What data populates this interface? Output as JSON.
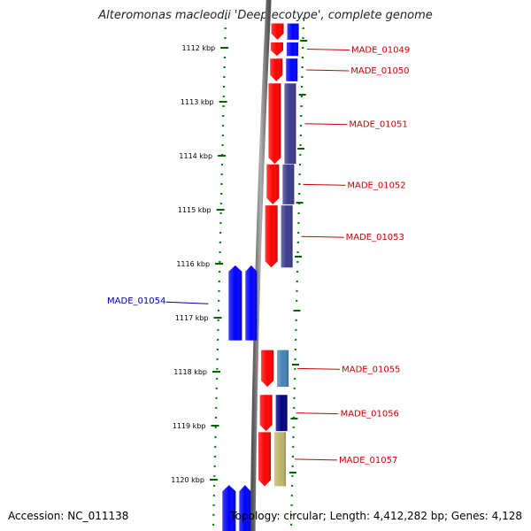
{
  "title": "Alteromonas macleodii 'Deep ecotype', complete genome",
  "footer": {
    "accession": "Accession: NC_011138",
    "topology": "Topology: circular; Length: 4,412,282 bp; Genes: 4,128"
  },
  "ticks": [
    {
      "kbp": 1112,
      "label": "1112 kbp"
    },
    {
      "kbp": 1113,
      "label": "1113 kbp"
    },
    {
      "kbp": 1114,
      "label": "1114 kbp"
    },
    {
      "kbp": 1115,
      "label": "1115 kbp"
    },
    {
      "kbp": 1116,
      "label": "1116 kbp"
    },
    {
      "kbp": 1117,
      "label": "1117 kbp"
    },
    {
      "kbp": 1118,
      "label": "1118 kbp"
    },
    {
      "kbp": 1119,
      "label": "1119 kbp"
    },
    {
      "kbp": 1120,
      "label": "1120 kbp"
    }
  ],
  "genes": [
    {
      "label": "",
      "strand": "forward",
      "start_kbp": 1111.55,
      "end_kbp": 1111.85,
      "color": "#ff0000",
      "cog_color": "#0000ff"
    },
    {
      "label": "MADE_01049",
      "strand": "forward",
      "start_kbp": 1111.9,
      "end_kbp": 1112.15,
      "color": "#ff0000",
      "cog_color": "#0000ff"
    },
    {
      "label": "MADE_01050",
      "strand": "forward",
      "start_kbp": 1112.2,
      "end_kbp": 1112.62,
      "color": "#ff0000",
      "cog_color": "#0000ff"
    },
    {
      "label": "MADE_01051",
      "strand": "forward",
      "start_kbp": 1112.66,
      "end_kbp": 1114.15,
      "color": "#ff0000",
      "cog_color": "#3b3b8c"
    },
    {
      "label": "MADE_01052",
      "strand": "forward",
      "start_kbp": 1114.16,
      "end_kbp": 1114.9,
      "color": "#ff0000",
      "cog_color": "#3b3b8c"
    },
    {
      "label": "MADE_01053",
      "strand": "forward",
      "start_kbp": 1114.92,
      "end_kbp": 1116.07,
      "color": "#ff0000",
      "cog_color": "#3b3b8c"
    },
    {
      "label": "MADE_01054",
      "strand": "reverse",
      "start_kbp": 1116.03,
      "end_kbp": 1117.42,
      "color": "#0000ff",
      "cog_color": "#0000ff"
    },
    {
      "label": "MADE_01055",
      "strand": "forward",
      "start_kbp": 1117.6,
      "end_kbp": 1118.28,
      "color": "#ff0000",
      "cog_color": "#4682b4"
    },
    {
      "label": "MADE_01056",
      "strand": "forward",
      "start_kbp": 1118.43,
      "end_kbp": 1119.1,
      "color": "#ff0000",
      "cog_color": "#000080"
    },
    {
      "label": "MADE_01057",
      "strand": "forward",
      "start_kbp": 1119.12,
      "end_kbp": 1120.12,
      "color": "#ff0000",
      "cog_color": "#bdb76b"
    },
    {
      "label": "",
      "strand": "reverse",
      "start_kbp": 1120.1,
      "end_kbp": 1121.0,
      "color": "#0000ff",
      "cog_color": ""
    }
  ]
}
